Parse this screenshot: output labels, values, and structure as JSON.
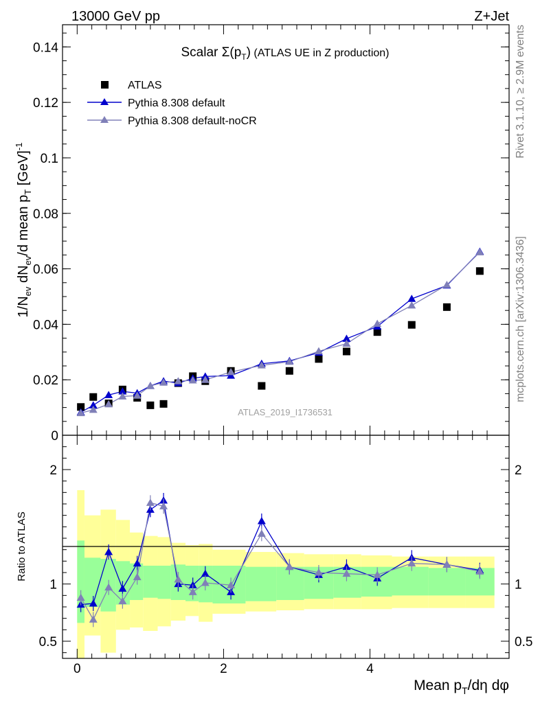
{
  "header": {
    "left": "13000 GeV pp",
    "right": "Z+Jet"
  },
  "side_labels": {
    "rivet": "Rivet 3.1.10, ≥ 2.9M events",
    "mcplots": "mcplots.cern.ch [arXiv:1306.3436]"
  },
  "watermark": "ATLAS_2019_I1736531",
  "chart_data": [
    {
      "type": "scatter",
      "title": "Scalar Σ(p_T) (ATLAS UE in Z production)",
      "xlabel": "Mean p_T/dη dφ",
      "ylabel": "1/N_ev dN_ev/d mean p_T [GeV]^-1",
      "xlim": [
        -0.2,
        5.9
      ],
      "ylim": [
        0,
        0.148
      ],
      "x_ticks": [
        0,
        2,
        4
      ],
      "y_ticks": [
        0,
        0.02,
        0.04,
        0.06,
        0.08,
        0.1,
        0.12,
        0.14
      ],
      "y_tick_labels": [
        "0",
        "0.02",
        "0.04",
        "0.06",
        "0.08",
        "0.1",
        "0.12",
        "0.14"
      ],
      "legend_position": "top-left",
      "x": [
        0.05,
        0.22,
        0.43,
        0.62,
        0.82,
        1.0,
        1.18,
        1.38,
        1.58,
        1.75,
        2.1,
        2.52,
        2.9,
        3.3,
        3.68,
        4.1,
        4.57,
        5.05,
        5.5
      ],
      "series": [
        {
          "name": "ATLAS",
          "color": "#000000",
          "marker": "square",
          "values": [
            0.0102,
            0.0138,
            0.0115,
            0.0165,
            0.0135,
            0.0108,
            0.0113,
            0.0188,
            0.0213,
            0.0195,
            0.0232,
            0.0178,
            0.0232,
            0.0275,
            0.0302,
            0.0372,
            0.0398,
            0.0462,
            0.0592
          ]
        },
        {
          "name": "Pythia 8.308 default",
          "color": "#0000cc",
          "marker": "triangle",
          "values": [
            0.0083,
            0.0108,
            0.0145,
            0.0158,
            0.0152,
            0.0178,
            0.0195,
            0.0188,
            0.0205,
            0.0212,
            0.0215,
            0.0258,
            0.0268,
            0.0298,
            0.0348,
            0.0392,
            0.0492,
            0.054,
            0.0662
          ]
        },
        {
          "name": "Pythia 8.308 default-noCR",
          "color": "#8080b8",
          "marker": "triangle",
          "values": [
            0.008,
            0.0092,
            0.0112,
            0.014,
            0.0143,
            0.0178,
            0.019,
            0.0195,
            0.0198,
            0.02,
            0.0228,
            0.0252,
            0.0265,
            0.0303,
            0.033,
            0.0402,
            0.0468,
            0.0542,
            0.066
          ]
        }
      ]
    },
    {
      "type": "line",
      "ylabel": "Ratio to ATLAS",
      "xlim": [
        -0.2,
        5.9
      ],
      "ylim": [
        0.35,
        2.3
      ],
      "y_ticks": [
        0.5,
        1,
        2
      ],
      "y_tick_labels": [
        "0.5",
        "1",
        "2"
      ],
      "reference": 1,
      "x": [
        0.05,
        0.22,
        0.43,
        0.62,
        0.82,
        1.0,
        1.18,
        1.38,
        1.58,
        1.75,
        2.1,
        2.52,
        2.9,
        3.3,
        3.68,
        4.1,
        4.57,
        5.05,
        5.5
      ],
      "bin_edges": [
        0.0,
        0.1,
        0.32,
        0.53,
        0.72,
        0.9,
        1.1,
        1.28,
        1.48,
        1.66,
        1.85,
        2.3,
        2.72,
        3.1,
        3.5,
        3.88,
        4.3,
        4.8,
        5.3,
        5.7
      ],
      "band_green": [
        [
          0.66,
          1.38
        ],
        [
          0.8,
          1.23
        ],
        [
          0.76,
          1.22
        ],
        [
          0.82,
          1.2
        ],
        [
          0.86,
          1.18
        ],
        [
          0.88,
          1.16
        ],
        [
          0.87,
          1.16
        ],
        [
          0.86,
          1.17
        ],
        [
          0.85,
          1.16
        ],
        [
          0.84,
          1.16
        ],
        [
          0.83,
          1.16
        ],
        [
          0.85,
          1.15
        ],
        [
          0.86,
          1.15
        ],
        [
          0.87,
          1.15
        ],
        [
          0.88,
          1.15
        ],
        [
          0.89,
          1.15
        ],
        [
          0.9,
          1.15
        ],
        [
          0.9,
          1.14
        ],
        [
          0.9,
          1.14
        ]
      ],
      "band_yellow": [
        [
          0.35,
          1.82
        ],
        [
          0.55,
          1.6
        ],
        [
          0.4,
          1.65
        ],
        [
          0.6,
          1.56
        ],
        [
          0.62,
          1.45
        ],
        [
          0.59,
          1.42
        ],
        [
          0.63,
          1.41
        ],
        [
          0.68,
          1.36
        ],
        [
          0.72,
          1.34
        ],
        [
          0.67,
          1.35
        ],
        [
          0.74,
          1.3
        ],
        [
          0.76,
          1.28
        ],
        [
          0.77,
          1.27
        ],
        [
          0.78,
          1.26
        ],
        [
          0.78,
          1.26
        ],
        [
          0.78,
          1.25
        ],
        [
          0.79,
          1.24
        ],
        [
          0.79,
          1.24
        ],
        [
          0.79,
          1.24
        ]
      ],
      "series": [
        {
          "name": "Pythia 8.308 default",
          "color": "#0000cc",
          "values": [
            0.82,
            0.83,
            1.28,
            0.96,
            1.18,
            1.65,
            1.73,
            1.0,
            0.99,
            1.09,
            0.93,
            1.55,
            1.15,
            1.08,
            1.15,
            1.05,
            1.23,
            1.17,
            1.12
          ]
        },
        {
          "name": "Pythia 8.308 default-noCR",
          "color": "#8080b8",
          "values": [
            0.88,
            0.69,
            0.97,
            0.85,
            1.06,
            1.71,
            1.68,
            1.04,
            0.93,
            1.01,
            0.99,
            1.44,
            1.15,
            1.1,
            1.09,
            1.08,
            1.18,
            1.17,
            1.11
          ]
        }
      ]
    }
  ]
}
